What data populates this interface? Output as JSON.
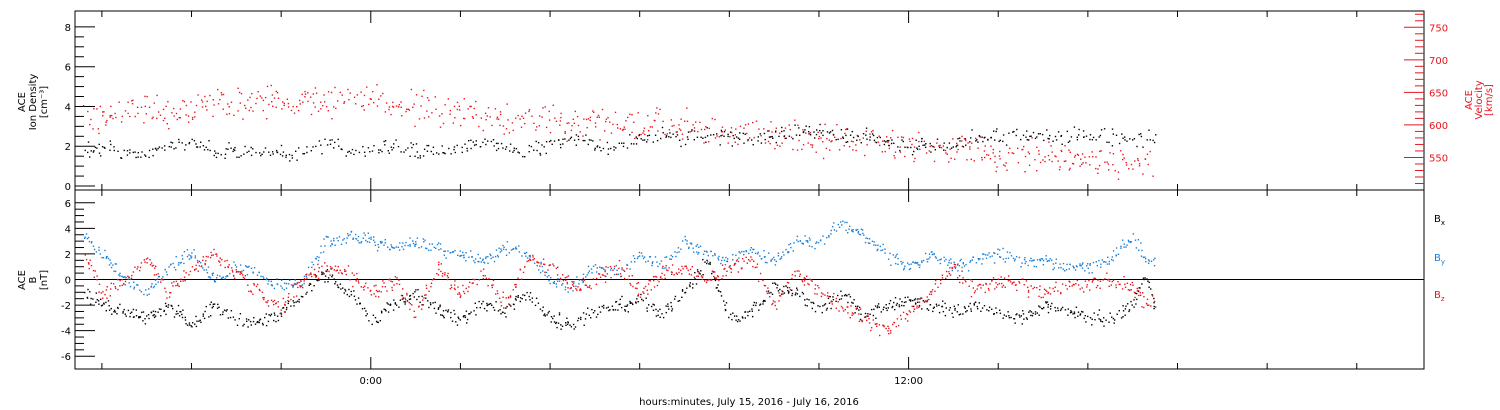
{
  "colors": {
    "black": "#000000",
    "red": "#e8151c",
    "blue": "#1a7fd6"
  },
  "x_axis": {
    "title": "hours:minutes, July 15, 2016 - July 16, 2016",
    "tick_labels": [
      {
        "hour": 0,
        "label": "0:00"
      },
      {
        "hour": 12,
        "label": "12:00"
      }
    ],
    "start_hour": -6.6,
    "end_hour": 23.5,
    "minor_tick_hours": 2
  },
  "chart_data": [
    {
      "type": "scatter",
      "panel": "top",
      "ylabel_lines": [
        "ACE",
        "Ion Density",
        "[cm⁻³]"
      ],
      "ylabel_right_lines": [
        "ACE",
        "Velocity",
        "[km/s]"
      ],
      "ylim": [
        -0.2,
        8.8
      ],
      "y_ticks": [
        0,
        2,
        4,
        6,
        8
      ],
      "y_right_lim": [
        500,
        775
      ],
      "y_right_ticks": [
        550,
        600,
        650,
        700,
        750
      ],
      "grid": false,
      "series": [
        {
          "key": "density",
          "color": "#000000",
          "axis": "left",
          "points": [
            [
              -6.4,
              1.8
            ],
            [
              -6.0,
              2.0
            ],
            [
              -5.5,
              1.7
            ],
            [
              -5.0,
              1.6
            ],
            [
              -4.5,
              2.1
            ],
            [
              -4.0,
              2.0
            ],
            [
              -3.5,
              1.8
            ],
            [
              -3.0,
              1.7
            ],
            [
              -2.5,
              1.9
            ],
            [
              -2.0,
              1.6
            ],
            [
              -1.5,
              1.8
            ],
            [
              -1.0,
              2.2
            ],
            [
              -0.5,
              1.7
            ],
            [
              0.0,
              1.9
            ],
            [
              0.5,
              2.0
            ],
            [
              1.0,
              1.8
            ],
            [
              1.5,
              1.7
            ],
            [
              2.0,
              1.9
            ],
            [
              2.5,
              2.2
            ],
            [
              3.0,
              2.0
            ],
            [
              3.5,
              1.8
            ],
            [
              4.0,
              2.1
            ],
            [
              4.5,
              2.3
            ],
            [
              5.0,
              2.1
            ],
            [
              5.5,
              2.0
            ],
            [
              6.0,
              2.4
            ],
            [
              6.5,
              2.5
            ],
            [
              7.0,
              2.3
            ],
            [
              7.5,
              2.6
            ],
            [
              8.0,
              2.5
            ],
            [
              8.5,
              2.4
            ],
            [
              9.0,
              2.6
            ],
            [
              9.5,
              2.7
            ],
            [
              10.0,
              2.7
            ],
            [
              10.5,
              2.6
            ],
            [
              11.0,
              2.5
            ],
            [
              11.5,
              2.2
            ],
            [
              12.0,
              2.0
            ],
            [
              12.5,
              2.0
            ],
            [
              13.0,
              2.1
            ],
            [
              13.5,
              2.5
            ],
            [
              14.0,
              2.5
            ],
            [
              14.5,
              2.6
            ],
            [
              15.0,
              2.5
            ],
            [
              15.5,
              2.5
            ],
            [
              16.0,
              2.6
            ],
            [
              16.5,
              2.5
            ],
            [
              17.0,
              2.5
            ],
            [
              17.3,
              2.4
            ],
            [
              17.5,
              2.4
            ]
          ]
        },
        {
          "key": "velocity",
          "color": "#e8151c",
          "axis": "right",
          "points": [
            [
              -6.4,
              610
            ],
            [
              -6.0,
              615
            ],
            [
              -5.5,
              625
            ],
            [
              -5.0,
              628
            ],
            [
              -4.5,
              615
            ],
            [
              -4.0,
              625
            ],
            [
              -3.5,
              635
            ],
            [
              -3.0,
              632
            ],
            [
              -2.5,
              635
            ],
            [
              -2.0,
              638
            ],
            [
              -1.5,
              640
            ],
            [
              -1.0,
              638
            ],
            [
              -0.5,
              640
            ],
            [
              0.0,
              645
            ],
            [
              0.5,
              630
            ],
            [
              1.0,
              628
            ],
            [
              1.5,
              625
            ],
            [
              2.0,
              615
            ],
            [
              2.5,
              618
            ],
            [
              3.0,
              612
            ],
            [
              3.5,
              615
            ],
            [
              4.0,
              610
            ],
            [
              4.5,
              600
            ],
            [
              5.0,
              605
            ],
            [
              5.5,
              598
            ],
            [
              6.0,
              600
            ],
            [
              6.5,
              598
            ],
            [
              7.0,
              598
            ],
            [
              7.5,
              595
            ],
            [
              8.0,
              590
            ],
            [
              8.5,
              588
            ],
            [
              9.0,
              585
            ],
            [
              9.5,
              583
            ],
            [
              10.0,
              580
            ],
            [
              10.5,
              578
            ],
            [
              11.0,
              575
            ],
            [
              11.5,
              572
            ],
            [
              12.0,
              568
            ],
            [
              12.5,
              566
            ],
            [
              13.0,
              565
            ],
            [
              13.5,
              560
            ],
            [
              14.0,
              555
            ],
            [
              14.5,
              554
            ],
            [
              15.0,
              553
            ],
            [
              15.5,
              551
            ],
            [
              16.0,
              548
            ],
            [
              16.5,
              545
            ],
            [
              17.0,
              540
            ],
            [
              17.3,
              538
            ],
            [
              17.5,
              535
            ]
          ]
        }
      ]
    },
    {
      "type": "scatter",
      "panel": "bottom",
      "ylabel_lines": [
        "ACE",
        "B",
        "[nT]"
      ],
      "ylim": [
        -7,
        7
      ],
      "y_ticks": [
        -6,
        -4,
        -2,
        0,
        2,
        4,
        6
      ],
      "zero_line": true,
      "grid": false,
      "series": [
        {
          "name": "B",
          "subscript": "x",
          "color": "#000000",
          "points": [
            [
              -6.4,
              -1.0
            ],
            [
              -6.0,
              -2.0
            ],
            [
              -5.5,
              -2.5
            ],
            [
              -5.0,
              -3.0
            ],
            [
              -4.5,
              -2.0
            ],
            [
              -4.0,
              -3.5
            ],
            [
              -3.5,
              -2.0
            ],
            [
              -3.0,
              -3.0
            ],
            [
              -2.5,
              -3.5
            ],
            [
              -2.0,
              -2.5
            ],
            [
              -1.5,
              -1.0
            ],
            [
              -1.0,
              0.5
            ],
            [
              -0.5,
              -1.0
            ],
            [
              0.0,
              -3.0
            ],
            [
              0.5,
              -2.0
            ],
            [
              1.0,
              -1.0
            ],
            [
              1.5,
              -2.5
            ],
            [
              2.0,
              -3.0
            ],
            [
              2.5,
              -2.0
            ],
            [
              3.0,
              -2.5
            ],
            [
              3.5,
              -1.0
            ],
            [
              4.0,
              -3.0
            ],
            [
              4.5,
              -3.5
            ],
            [
              5.0,
              -2.5
            ],
            [
              5.5,
              -2.0
            ],
            [
              6.0,
              -1.5
            ],
            [
              6.5,
              -2.5
            ],
            [
              7.0,
              -1.0
            ],
            [
              7.5,
              1.5
            ],
            [
              8.0,
              -3.0
            ],
            [
              8.5,
              -2.5
            ],
            [
              9.0,
              -0.5
            ],
            [
              9.5,
              -1.0
            ],
            [
              10.0,
              -2.5
            ],
            [
              10.5,
              -1.0
            ],
            [
              11.0,
              -3.0
            ],
            [
              11.5,
              -2.0
            ],
            [
              12.0,
              -1.5
            ],
            [
              12.5,
              -2.0
            ],
            [
              13.0,
              -2.5
            ],
            [
              13.5,
              -2.0
            ],
            [
              14.0,
              -2.5
            ],
            [
              14.5,
              -3.0
            ],
            [
              15.0,
              -2.0
            ],
            [
              15.5,
              -2.5
            ],
            [
              16.0,
              -3.0
            ],
            [
              16.5,
              -3.0
            ],
            [
              17.0,
              -2.0
            ],
            [
              17.3,
              0.5
            ],
            [
              17.5,
              -2.0
            ]
          ]
        },
        {
          "name": "B",
          "subscript": "y",
          "color": "#1a7fd6",
          "points": [
            [
              -6.4,
              3.5
            ],
            [
              -6.0,
              2.0
            ],
            [
              -5.5,
              0.0
            ],
            [
              -5.0,
              -1.0
            ],
            [
              -4.5,
              1.0
            ],
            [
              -4.0,
              2.0
            ],
            [
              -3.5,
              0.0
            ],
            [
              -3.0,
              1.0
            ],
            [
              -2.5,
              0.5
            ],
            [
              -2.0,
              -0.5
            ],
            [
              -1.5,
              0.0
            ],
            [
              -1.0,
              3.0
            ],
            [
              -0.5,
              3.5
            ],
            [
              0.0,
              3.0
            ],
            [
              0.5,
              2.5
            ],
            [
              1.0,
              3.0
            ],
            [
              1.5,
              2.5
            ],
            [
              2.0,
              2.0
            ],
            [
              2.5,
              1.5
            ],
            [
              3.0,
              2.5
            ],
            [
              3.5,
              2.0
            ],
            [
              4.0,
              0.0
            ],
            [
              4.5,
              -0.5
            ],
            [
              5.0,
              1.0
            ],
            [
              5.5,
              0.5
            ],
            [
              6.0,
              2.0
            ],
            [
              6.5,
              1.0
            ],
            [
              7.0,
              3.0
            ],
            [
              7.5,
              2.0
            ],
            [
              8.0,
              1.5
            ],
            [
              8.5,
              2.5
            ],
            [
              9.0,
              1.5
            ],
            [
              9.5,
              3.0
            ],
            [
              10.0,
              3.0
            ],
            [
              10.5,
              4.5
            ],
            [
              11.0,
              3.5
            ],
            [
              11.5,
              2.0
            ],
            [
              12.0,
              1.0
            ],
            [
              12.5,
              2.0
            ],
            [
              13.0,
              1.0
            ],
            [
              13.5,
              1.5
            ],
            [
              14.0,
              2.0
            ],
            [
              14.5,
              1.5
            ],
            [
              15.0,
              1.5
            ],
            [
              15.5,
              1.0
            ],
            [
              16.0,
              1.0
            ],
            [
              16.5,
              1.5
            ],
            [
              17.0,
              3.5
            ],
            [
              17.3,
              1.5
            ],
            [
              17.5,
              1.5
            ]
          ]
        },
        {
          "name": "B",
          "subscript": "z",
          "color": "#e8151c",
          "points": [
            [
              -6.4,
              2.0
            ],
            [
              -6.0,
              -1.0
            ],
            [
              -5.5,
              0.0
            ],
            [
              -5.0,
              1.5
            ],
            [
              -4.5,
              -1.0
            ],
            [
              -4.0,
              1.0
            ],
            [
              -3.5,
              2.0
            ],
            [
              -3.0,
              0.5
            ],
            [
              -2.5,
              -1.0
            ],
            [
              -2.0,
              -2.0
            ],
            [
              -1.5,
              0.0
            ],
            [
              -1.0,
              1.0
            ],
            [
              -0.5,
              0.5
            ],
            [
              0.0,
              -1.0
            ],
            [
              0.5,
              0.0
            ],
            [
              1.0,
              -2.5
            ],
            [
              1.5,
              1.0
            ],
            [
              2.0,
              -1.0
            ],
            [
              2.5,
              0.5
            ],
            [
              3.0,
              -2.0
            ],
            [
              3.5,
              1.5
            ],
            [
              4.0,
              1.0
            ],
            [
              4.5,
              -0.5
            ],
            [
              5.0,
              0.0
            ],
            [
              5.5,
              1.0
            ],
            [
              6.0,
              -1.0
            ],
            [
              6.5,
              0.5
            ],
            [
              7.0,
              1.0
            ],
            [
              7.5,
              0.0
            ],
            [
              8.0,
              1.0
            ],
            [
              8.5,
              1.5
            ],
            [
              9.0,
              -2.0
            ],
            [
              9.5,
              0.5
            ],
            [
              10.0,
              -1.0
            ],
            [
              10.5,
              -2.0
            ],
            [
              11.0,
              -3.0
            ],
            [
              11.5,
              -4.0
            ],
            [
              12.0,
              -2.5
            ],
            [
              12.5,
              -1.0
            ],
            [
              13.0,
              1.0
            ],
            [
              13.5,
              -1.0
            ],
            [
              14.0,
              0.0
            ],
            [
              14.5,
              -0.5
            ],
            [
              15.0,
              -1.0
            ],
            [
              15.5,
              -0.5
            ],
            [
              16.0,
              -0.3
            ],
            [
              16.5,
              -0.2
            ],
            [
              17.0,
              -0.5
            ],
            [
              17.3,
              -2.0
            ],
            [
              17.5,
              -1.5
            ]
          ]
        }
      ]
    }
  ]
}
